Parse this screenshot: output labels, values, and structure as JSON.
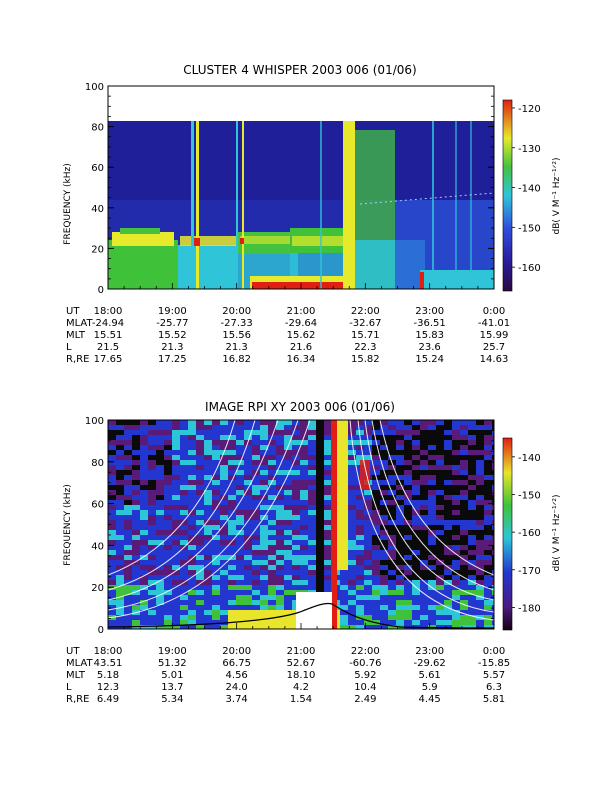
{
  "chart_data": [
    {
      "type": "heatmap",
      "title": "CLUSTER 4 WHISPER 2003 006 (01/06)",
      "ylabel": "FREQUENCY (kHz)",
      "ylim": [
        0,
        100
      ],
      "yticks": [
        "0",
        "20",
        "40",
        "60",
        "80",
        "100"
      ],
      "data_extent_khz": [
        0,
        80
      ],
      "x_ticks": [
        "18:00",
        "19:00",
        "20:00",
        "21:00",
        "22:00",
        "23:00",
        "0:00"
      ],
      "colorbar": {
        "label": "dB( V M⁻¹ Hz⁻¹ᐟ²)",
        "ticks": [
          "-120",
          "-130",
          "-140",
          "-150",
          "-160"
        ],
        "range": [
          -166,
          -118
        ]
      },
      "ephemeris": [
        {
          "label": "UT",
          "values": [
            "18:00",
            "19:00",
            "20:00",
            "21:00",
            "22:00",
            "23:00",
            "0:00"
          ]
        },
        {
          "label": "MLAT",
          "values": [
            "-24.94",
            "-25.77",
            "-27.33",
            "-29.64",
            "-32.67",
            "-36.51",
            "-41.01"
          ]
        },
        {
          "label": "MLT",
          "values": [
            "15.51",
            "15.52",
            "15.56",
            "15.62",
            "15.71",
            "15.83",
            "15.99"
          ]
        },
        {
          "label": "L",
          "values": [
            "21.5",
            "21.3",
            "21.3",
            "21.6",
            "22.3",
            "23.6",
            "25.7"
          ]
        },
        {
          "label": "R,RE",
          "values": [
            "17.65",
            "17.25",
            "16.82",
            "16.34",
            "15.82",
            "15.24",
            "14.63"
          ]
        }
      ],
      "colors": {
        "background": "#1f1f9a",
        "yellow": "#e6ea2a",
        "green": "#44c23f",
        "cyan": "#2fc4d8",
        "red": "#e01f12",
        "blue": "#3b4fe0"
      }
    },
    {
      "type": "heatmap",
      "title": "IMAGE RPI XY 2003 006 (01/06)",
      "ylabel": "FREQUENCY (kHz)",
      "ylim": [
        0,
        100
      ],
      "yticks": [
        "0",
        "20",
        "40",
        "60",
        "80",
        "100"
      ],
      "x_ticks": [
        "18:00",
        "19:00",
        "20:00",
        "21:00",
        "22:00",
        "23:00",
        "0:00"
      ],
      "colorbar": {
        "label": "dB( V M⁻¹ Hz⁻¹ᐟ²)",
        "ticks": [
          "-140",
          "-150",
          "-160",
          "-170",
          "-180"
        ],
        "range": [
          -186,
          -135
        ]
      },
      "ephemeris": [
        {
          "label": "UT",
          "values": [
            "18:00",
            "19:00",
            "20:00",
            "21:00",
            "22:00",
            "23:00",
            "0:00"
          ]
        },
        {
          "label": "MLAT",
          "values": [
            "43.51",
            "51.32",
            "66.75",
            "52.67",
            "-60.76",
            "-29.62",
            "-15.85"
          ]
        },
        {
          "label": "MLT",
          "values": [
            "5.18",
            "5.01",
            "4.56",
            "18.10",
            "5.92",
            "5.61",
            "5.57"
          ]
        },
        {
          "label": "L",
          "values": [
            "12.3",
            "13.7",
            "24.0",
            "4.2",
            "10.4",
            "5.9",
            "6.3"
          ]
        },
        {
          "label": "R,RE",
          "values": [
            "6.49",
            "5.34",
            "3.74",
            "1.54",
            "2.49",
            "4.45",
            "5.81"
          ]
        }
      ],
      "overlays": {
        "white_curves": "plasma frequency harmonics",
        "black_curve": "electron gyrofrequency"
      },
      "colors": {
        "black": "#0a0a0a",
        "purple": "#5a1a78",
        "blue": "#2436d0",
        "cyan": "#2cc6d8",
        "green": "#3fc23a",
        "yellow": "#e8e52a",
        "red": "#e01f12"
      }
    }
  ]
}
